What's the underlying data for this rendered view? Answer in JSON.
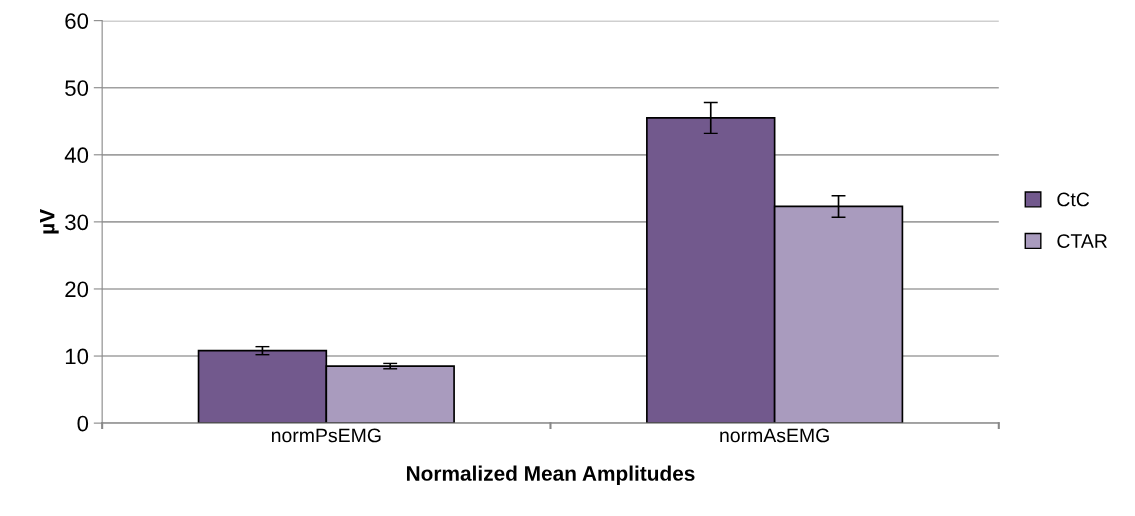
{
  "chart_data": {
    "type": "bar",
    "xlabel": "Normalized Mean Amplitudes",
    "ylabel": "µV",
    "categories": [
      "normPsEMG",
      "normAsEMG"
    ],
    "series": [
      {
        "name": "CtC",
        "color": "#72598d",
        "values": [
          10.8,
          45.5
        ],
        "errors": [
          0.6,
          2.3
        ]
      },
      {
        "name": "CTAR",
        "color": "#a99bbe",
        "values": [
          8.5,
          32.3
        ],
        "errors": [
          0.4,
          1.6
        ]
      }
    ],
    "ylim": [
      0,
      60
    ],
    "yticks": [
      0,
      10,
      20,
      30,
      40,
      50,
      60
    ],
    "grid": "y",
    "legend": "right"
  }
}
